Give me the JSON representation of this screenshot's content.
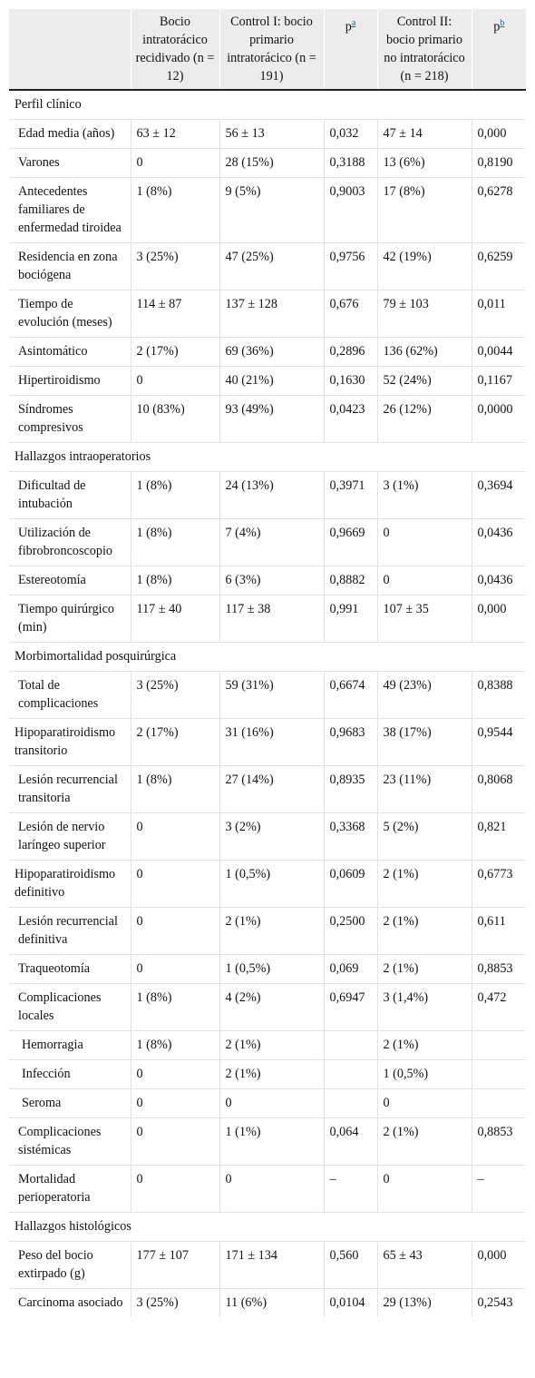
{
  "header": {
    "col0": "",
    "col1": "Bocio intratorácico recidivado (n = 12)",
    "col2": "Control I: bocio primario intratorácico (n = 191)",
    "col3": "p",
    "col3_sup": "a",
    "col4": "Control II: bocio primario no intratorácico (n = 218)",
    "col5": "p",
    "col5_sup": "b"
  },
  "rows": [
    {
      "type": "section",
      "label": "Perfil clínico"
    },
    {
      "type": "data",
      "indent": 1,
      "label": "Edad media (años)",
      "v": [
        "63 ± 12",
        "56 ± 13",
        "0,032",
        "47 ± 14",
        "0,000"
      ]
    },
    {
      "type": "data",
      "indent": 1,
      "label": "Varones",
      "v": [
        "0",
        "28 (15%)",
        "0,3188",
        "13 (6%)",
        "0,8190"
      ]
    },
    {
      "type": "data",
      "indent": 1,
      "label": "Antecedentes familiares de enfermedad tiroidea",
      "v": [
        "1 (8%)",
        "9 (5%)",
        "0,9003",
        "17 (8%)",
        "0,6278"
      ]
    },
    {
      "type": "data",
      "indent": 1,
      "label": "Residencia en zona bociógena",
      "v": [
        "3 (25%)",
        "47 (25%)",
        "0,9756",
        "42 (19%)",
        "0,6259"
      ]
    },
    {
      "type": "data",
      "indent": 1,
      "label": "Tiempo de evolución (meses)",
      "v": [
        "114 ± 87",
        "137 ± 128",
        "0,676",
        "79 ± 103",
        "0,011"
      ]
    },
    {
      "type": "data",
      "indent": 1,
      "label": "Asintomático",
      "v": [
        "2 (17%)",
        "69 (36%)",
        "0,2896",
        "136 (62%)",
        "0,0044"
      ]
    },
    {
      "type": "data",
      "indent": 1,
      "label": "Hipertiroidismo",
      "v": [
        "0",
        "40 (21%)",
        "0,1630",
        "52 (24%)",
        "0,1167"
      ]
    },
    {
      "type": "data",
      "indent": 1,
      "label": "Síndromes compresivos",
      "v": [
        "10 (83%)",
        "93 (49%)",
        "0,0423",
        "26 (12%)",
        "0,0000"
      ]
    },
    {
      "type": "section",
      "label": "Hallazgos intraoperatorios"
    },
    {
      "type": "data",
      "indent": 1,
      "label": "Dificultad de intubación",
      "v": [
        "1 (8%)",
        "24 (13%)",
        "0,3971",
        "3 (1%)",
        "0,3694"
      ]
    },
    {
      "type": "data",
      "indent": 1,
      "label": "Utilización de fibrobroncoscopio",
      "v": [
        "1 (8%)",
        "7 (4%)",
        "0,9669",
        "0",
        "0,0436"
      ]
    },
    {
      "type": "data",
      "indent": 1,
      "label": "Estereotomía",
      "v": [
        "1 (8%)",
        "6 (3%)",
        "0,8882",
        "0",
        "0,0436"
      ]
    },
    {
      "type": "data",
      "indent": 1,
      "label": "Tiempo quirúrgico (min)",
      "v": [
        "117 ± 40",
        "117 ± 38",
        "0,991",
        "107 ± 35",
        "0,000"
      ]
    },
    {
      "type": "section",
      "label": "Morbimortalidad posquirúrgica"
    },
    {
      "type": "data",
      "indent": 1,
      "label": "Total de complicaciones",
      "v": [
        "3 (25%)",
        "59 (31%)",
        "0,6674",
        "49 (23%)",
        "0,8388"
      ]
    },
    {
      "type": "data",
      "indent": 0,
      "label": "Hipoparatiroidismo transitorio",
      "v": [
        "2 (17%)",
        "31 (16%)",
        "0,9683",
        "38 (17%)",
        "0,9544"
      ]
    },
    {
      "type": "data",
      "indent": 1,
      "label": "Lesión recurrencial transitoria",
      "v": [
        "1 (8%)",
        "27 (14%)",
        "0,8935",
        "23 (11%)",
        "0,8068"
      ]
    },
    {
      "type": "data",
      "indent": 1,
      "label": "Lesión de nervio laríngeo superior",
      "v": [
        "0",
        "3 (2%)",
        "0,3368",
        "5 (2%)",
        "0,821"
      ]
    },
    {
      "type": "data",
      "indent": 0,
      "label": "Hipoparatiroidismo definitivo",
      "v": [
        "0",
        "1 (0,5%)",
        "0,0609",
        "2 (1%)",
        "0,6773"
      ]
    },
    {
      "type": "data",
      "indent": 1,
      "label": "Lesión recurrencial definitiva",
      "v": [
        "0",
        "2 (1%)",
        "0,2500",
        "2 (1%)",
        "0,611"
      ]
    },
    {
      "type": "data",
      "indent": 1,
      "label": "Traqueotomía",
      "v": [
        "0",
        "1 (0,5%)",
        "0,069",
        "2 (1%)",
        "0,8853"
      ]
    },
    {
      "type": "data",
      "indent": 1,
      "label": "Complicaciones locales",
      "v": [
        "1 (8%)",
        "4 (2%)",
        "0,6947",
        "3 (1,4%)",
        "0,472"
      ]
    },
    {
      "type": "data",
      "indent": 2,
      "label": "Hemorragia",
      "v": [
        "1 (8%)",
        "2 (1%)",
        "",
        "2 (1%)",
        ""
      ]
    },
    {
      "type": "data",
      "indent": 2,
      "label": "Infección",
      "v": [
        "0",
        "2 (1%)",
        "",
        "1 (0,5%)",
        ""
      ]
    },
    {
      "type": "data",
      "indent": 2,
      "label": "Seroma",
      "v": [
        "0",
        "0",
        "",
        "0",
        ""
      ]
    },
    {
      "type": "data",
      "indent": 1,
      "label": "Complicaciones sistémicas",
      "v": [
        "0",
        "1 (1%)",
        "0,064",
        "2 (1%)",
        "0,8853"
      ]
    },
    {
      "type": "data",
      "indent": 1,
      "label": "Mortalidad perioperatoria",
      "v": [
        "0",
        "0",
        "–",
        "0",
        "–"
      ]
    },
    {
      "type": "section",
      "label": "Hallazgos histológicos"
    },
    {
      "type": "data",
      "indent": 1,
      "label": "Peso del bocio extirpado (g)",
      "v": [
        "177 ± 107",
        "171 ± 134",
        "0,560",
        "65 ± 43",
        "0,000"
      ]
    },
    {
      "type": "data",
      "indent": 1,
      "label": "Carcinoma asociado",
      "v": [
        "3 (25%)",
        "11 (6%)",
        "0,0104",
        "29 (13%)",
        "0,2543"
      ]
    }
  ]
}
